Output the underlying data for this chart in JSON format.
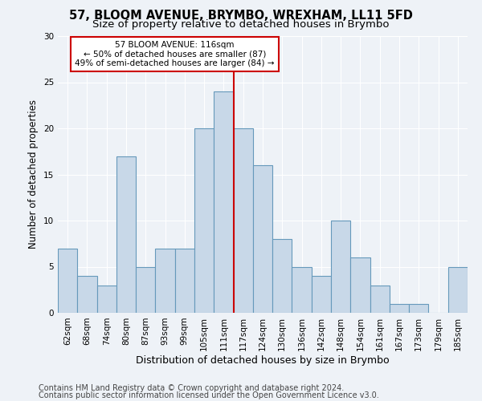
{
  "title": "57, BLOOM AVENUE, BRYMBO, WREXHAM, LL11 5FD",
  "subtitle": "Size of property relative to detached houses in Brymbo",
  "xlabel": "Distribution of detached houses by size in Brymbo",
  "ylabel": "Number of detached properties",
  "categories": [
    "62sqm",
    "68sqm",
    "74sqm",
    "80sqm",
    "87sqm",
    "93sqm",
    "99sqm",
    "105sqm",
    "111sqm",
    "117sqm",
    "124sqm",
    "130sqm",
    "136sqm",
    "142sqm",
    "148sqm",
    "154sqm",
    "161sqm",
    "167sqm",
    "173sqm",
    "179sqm",
    "185sqm"
  ],
  "values": [
    7,
    4,
    3,
    17,
    5,
    7,
    7,
    20,
    24,
    20,
    16,
    8,
    5,
    4,
    10,
    6,
    3,
    1,
    1,
    0,
    5
  ],
  "bar_color": "#c8d8e8",
  "bar_edge_color": "#6699bb",
  "highlight_line_index": 8,
  "annotation_text": "57 BLOOM AVENUE: 116sqm\n← 50% of detached houses are smaller (87)\n49% of semi-detached houses are larger (84) →",
  "annotation_box_color": "#ffffff",
  "annotation_box_edge_color": "#cc0000",
  "ylim": [
    0,
    30
  ],
  "yticks": [
    0,
    5,
    10,
    15,
    20,
    25,
    30
  ],
  "footer_line1": "Contains HM Land Registry data © Crown copyright and database right 2024.",
  "footer_line2": "Contains public sector information licensed under the Open Government Licence v3.0.",
  "background_color": "#eef2f7",
  "grid_color": "#ffffff",
  "title_fontsize": 10.5,
  "subtitle_fontsize": 9.5,
  "ylabel_fontsize": 8.5,
  "xlabel_fontsize": 9,
  "tick_fontsize": 7.5,
  "annotation_fontsize": 7.5,
  "footer_fontsize": 7
}
